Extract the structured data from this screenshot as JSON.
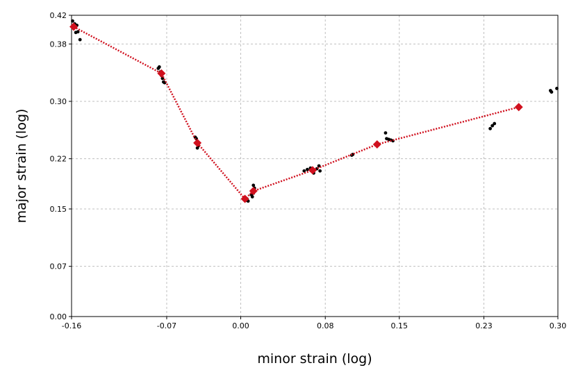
{
  "chart_data": {
    "type": "scatter",
    "xlabel": "minor strain  (log)",
    "ylabel": "major strain (log)",
    "xlim": [
      -0.16,
      0.3
    ],
    "ylim": [
      0.0,
      0.42
    ],
    "x_ticks": [
      "-0.16",
      "-0.07",
      "0.00",
      "0.08",
      "0.15",
      "0.23",
      "0.30"
    ],
    "y_ticks": [
      "0.00",
      "0.07",
      "0.15",
      "0.22",
      "0.30",
      "0.38",
      "0.42"
    ],
    "grid": true,
    "colors": {
      "points": "#000000",
      "curve": "#d0101e"
    },
    "series": [
      {
        "type": "scatter",
        "marker": "circle",
        "points": [
          [
            -0.159,
            0.412
          ],
          [
            -0.158,
            0.405
          ],
          [
            -0.157,
            0.408
          ],
          [
            -0.155,
            0.406
          ],
          [
            -0.156,
            0.396
          ],
          [
            -0.154,
            0.397
          ],
          [
            -0.152,
            0.386
          ],
          [
            -0.078,
            0.346
          ],
          [
            -0.077,
            0.348
          ],
          [
            -0.076,
            0.341
          ],
          [
            -0.075,
            0.336
          ],
          [
            -0.074,
            0.332
          ],
          [
            -0.073,
            0.327
          ],
          [
            -0.072,
            0.326
          ],
          [
            -0.043,
            0.25
          ],
          [
            -0.042,
            0.248
          ],
          [
            -0.041,
            0.243
          ],
          [
            -0.04,
            0.238
          ],
          [
            -0.041,
            0.235
          ],
          [
            0.004,
            0.166
          ],
          [
            0.005,
            0.162
          ],
          [
            0.006,
            0.164
          ],
          [
            0.007,
            0.161
          ],
          [
            0.011,
            0.175
          ],
          [
            0.012,
            0.172
          ],
          [
            0.013,
            0.179
          ],
          [
            0.012,
            0.183
          ],
          [
            0.01,
            0.17
          ],
          [
            0.011,
            0.167
          ],
          [
            0.06,
            0.203
          ],
          [
            0.063,
            0.205
          ],
          [
            0.066,
            0.207
          ],
          [
            0.068,
            0.202
          ],
          [
            0.069,
            0.2
          ],
          [
            0.072,
            0.206
          ],
          [
            0.074,
            0.21
          ],
          [
            0.075,
            0.203
          ],
          [
            0.105,
            0.225
          ],
          [
            0.106,
            0.226
          ],
          [
            0.137,
            0.256
          ],
          [
            0.138,
            0.248
          ],
          [
            0.14,
            0.247
          ],
          [
            0.142,
            0.246
          ],
          [
            0.144,
            0.245
          ],
          [
            0.236,
            0.262
          ],
          [
            0.238,
            0.266
          ],
          [
            0.24,
            0.269
          ],
          [
            0.293,
            0.315
          ],
          [
            0.294,
            0.313
          ],
          [
            0.299,
            0.318
          ]
        ]
      },
      {
        "type": "line",
        "marker": "diamond",
        "style": "dotted",
        "points": [
          [
            -0.158,
            0.404
          ],
          [
            -0.075,
            0.339
          ],
          [
            -0.041,
            0.242
          ],
          [
            0.004,
            0.164
          ],
          [
            0.012,
            0.175
          ],
          [
            0.068,
            0.204
          ],
          [
            0.129,
            0.24
          ],
          [
            0.263,
            0.292
          ]
        ]
      }
    ]
  }
}
